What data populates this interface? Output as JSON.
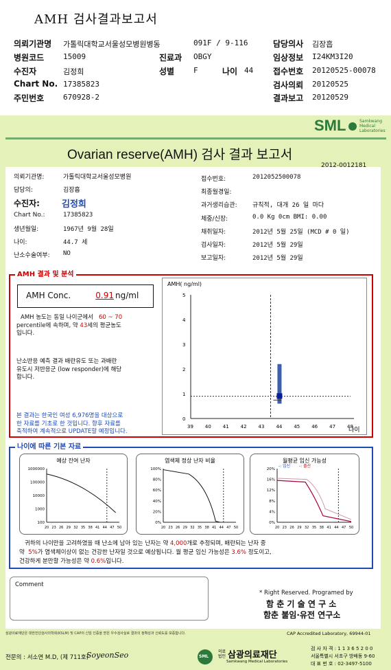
{
  "header": {
    "title": "AMH 검사결과보고서",
    "rows": [
      {
        "l1": "의뢰기관명",
        "v1": "가톨릭대학교서울성모병원병동",
        "l2": "",
        "v2": "091F / 9-116",
        "l3": "담당의사",
        "v3": "김장흡"
      },
      {
        "l1": "병원코드",
        "v1": "15009",
        "l2": "진료과",
        "v2": "OBGY",
        "l3": "임상정보",
        "v3": "I24KM3I20"
      },
      {
        "l1": "수진자",
        "v1": "김정희",
        "l2": "성별",
        "v2": "F",
        "l2b": "나이",
        "v2b": "44",
        "l3": "접수번호",
        "v3": "20120525-00078"
      },
      {
        "l1": "Chart No.",
        "v1": "17385823",
        "l2": "",
        "v2": "",
        "l3": "검사의뢰",
        "v3": "20120525"
      },
      {
        "l1": "주민번호",
        "v1": "670928-2",
        "l2": "",
        "v2": "",
        "l3": "결과보고",
        "v3": "20120529"
      }
    ]
  },
  "logo": {
    "text": "SML",
    "sub1": "Samkwang",
    "sub2": "Medical",
    "sub3": "Laboratories"
  },
  "report": {
    "title": "Ovarian reserve(AMH) 검사 결과 보고서",
    "number": "2012-0012181"
  },
  "patient": {
    "hospital_label": "의뢰기관명:",
    "hospital": "가톨릭대학교서울성모병원",
    "doctor_label": "담당의:",
    "doctor": "김장흡",
    "name_label": "수진자:",
    "name": "김정희",
    "chart_label": "Chart No.:",
    "chart": "17385823",
    "birth_label": "생년월일:",
    "birth": "1967년 9월 28일",
    "age_label": "나이:",
    "age": "44.7 세",
    "dx_label": "난소수술여부:",
    "dx": "NO",
    "reg_label": "접수번호:",
    "reg": "2012052500078",
    "menop_label": "최종월경일:",
    "menop": "",
    "cycle_label": "과거생리습관:",
    "cycle": "규칙적, 대개  26 일 마다",
    "wt_label": "체중/신장:",
    "wt": "0.0 Kg      0cm     BMI:    0.00",
    "coll_label": "채취일자:",
    "coll": "2012년 5월 25일  (MCD # 0 일)",
    "test_label": "검사일자:",
    "test": "2012년 5월 29일",
    "rep_label": "보고일자:",
    "rep": "2012년 5월 29일"
  },
  "amh": {
    "section": "AMH 결과 및 분석",
    "conc_label": "AMH Conc.",
    "value": "0.91",
    "unit": "ng/ml",
    "desc1a": "AMH 농도는 동일 나이군에서",
    "desc1b": "60 ~ 70",
    "desc2a": "percentile에 속하며, 약",
    "desc2b": "43",
    "desc2c": "세의 평균농도",
    "desc3": "입니다.",
    "poor1": "난소반응 예측 결과 배란유도 또는 과배란",
    "poor2": "유도시 저반응군 (low responder)에 해당",
    "poor3": "합니다.",
    "note1": "본 결과는 한국인 여성 6,976명을 대상으로",
    "note2": "한 자료를 기초로 한 것입니다. 향후 자료를",
    "note3": "축적하여 계속적으로 UPDATE할 예정입니다."
  },
  "chart_data": [
    {
      "type": "scatter",
      "title": "",
      "ylabel": "AMH( ng/ml)",
      "xlabel": "나이",
      "x": [
        39,
        40,
        41,
        42,
        43,
        44,
        45,
        46,
        47,
        48
      ],
      "ylim": [
        0,
        5
      ],
      "yticks": [
        0,
        1,
        2,
        3,
        4,
        5
      ],
      "patient_point": {
        "x": 44,
        "y": 0.91
      },
      "range_bar": {
        "x": 44,
        "low": 0.6,
        "high": 2.2
      },
      "reference_y": 0.9
    },
    {
      "type": "line",
      "title": "예상 잔여 난자",
      "yticks": [
        "1000000",
        "100000",
        "10000",
        "1000",
        "100"
      ],
      "x": [
        "20",
        "23",
        "26",
        "29",
        "32",
        "35",
        "38",
        "41",
        "44",
        "47",
        "50"
      ]
    },
    {
      "type": "line",
      "title": "염색체 정상 난자 비율",
      "yticks": [
        "100%",
        "80%",
        "60%",
        "40%",
        "20%",
        "0%"
      ],
      "x": [
        "20",
        "23",
        "26",
        "29",
        "32",
        "35",
        "38",
        "41",
        "44",
        "47",
        "50"
      ]
    },
    {
      "type": "line",
      "title": "월평균 임신 가능성",
      "legend": [
        "임신",
        "출산"
      ],
      "yticks": [
        "20%",
        "16%",
        "12%",
        "8%",
        "4%",
        "0%"
      ],
      "x": [
        "20",
        "23",
        "26",
        "29",
        "32",
        "35",
        "38",
        "41",
        "44",
        "47",
        "50"
      ]
    }
  ],
  "age_section": {
    "title": "나이에 따른 기본 자료",
    "s1a": "귀하의 나이만을 고려하였을 때 난소에 남아 있는 난자는 약",
    "s1b": "4,000",
    "s1c": "개로 추정되며, 배란되는 난자 중",
    "s2a": "약",
    "s2b": "5%",
    "s2c": "가 염색체이상이 없는 건강한 난자일 것으로 예상됩니다. 월 평균 임신 가능성은",
    "s2d": "3.6%",
    "s2e": "정도이고,",
    "s3a": "건강하게 분만할 가능성은 약",
    "s3b": "0.6%",
    "s3c": "입니다."
  },
  "comment_label": "Comment",
  "footer": {
    "rights": "* Right Reserved. Programed by",
    "lab1": "함 춘  기 술  연 구 소",
    "lab2": "함춘 불임·유전 연구소",
    "cert": "삼광의료재단은 대한진단검사의학회(KSLM) 및 CAP의 신임 인증을 받은 우수검사실로 결과의 정확성과 신뢰도를 보증합니다.",
    "cap": "CAP  Accredited  Laboratory,  69944-01",
    "doctor": "전문의 : 서소연 M.D, (제 711호)",
    "sign": "SoyeonSeo",
    "org": "삼광의료재단",
    "org_en": "Samkwang Medical Laboratories",
    "org_prefix": "의료법인",
    "reg": "검 사 자 격 : 1 1 3 6 5 2 0 0",
    "addr": "서울특별시 서초구 방배동  9-60",
    "tel": "대 표 번 호 : 02-3497-5100"
  }
}
